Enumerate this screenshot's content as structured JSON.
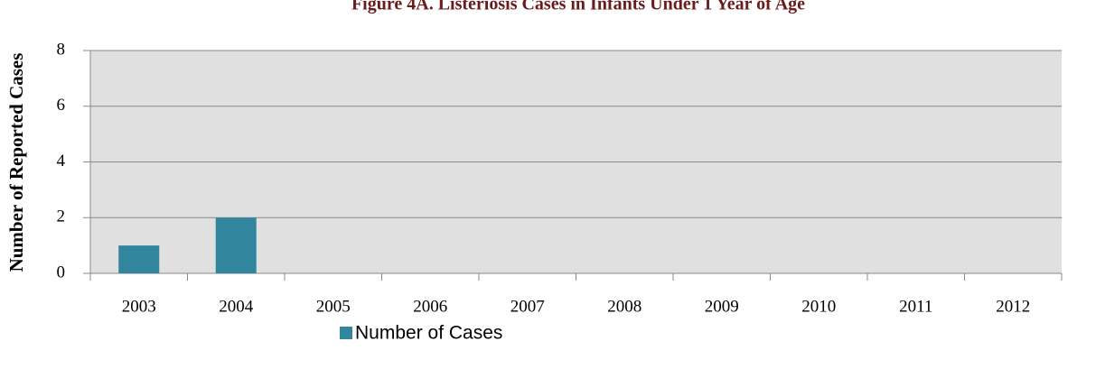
{
  "chart_data": {
    "type": "bar",
    "title": "Figure 4A. Listeriosis Cases in Infants Under 1 Year of Age",
    "y_label": "Number of Reported Cases",
    "categories": [
      "2003",
      "2004",
      "2005",
      "2006",
      "2007",
      "2008",
      "2009",
      "2010",
      "2011",
      "2012"
    ],
    "series": [
      {
        "name": "Number of Cases",
        "color": "#31859c",
        "values": [
          1,
          2,
          0,
          0,
          0,
          0,
          0,
          0,
          0,
          0
        ]
      }
    ],
    "ylim": [
      0,
      8
    ],
    "yticks": [
      0,
      2,
      4,
      6,
      8
    ],
    "grid": true,
    "legend": "bottom"
  }
}
